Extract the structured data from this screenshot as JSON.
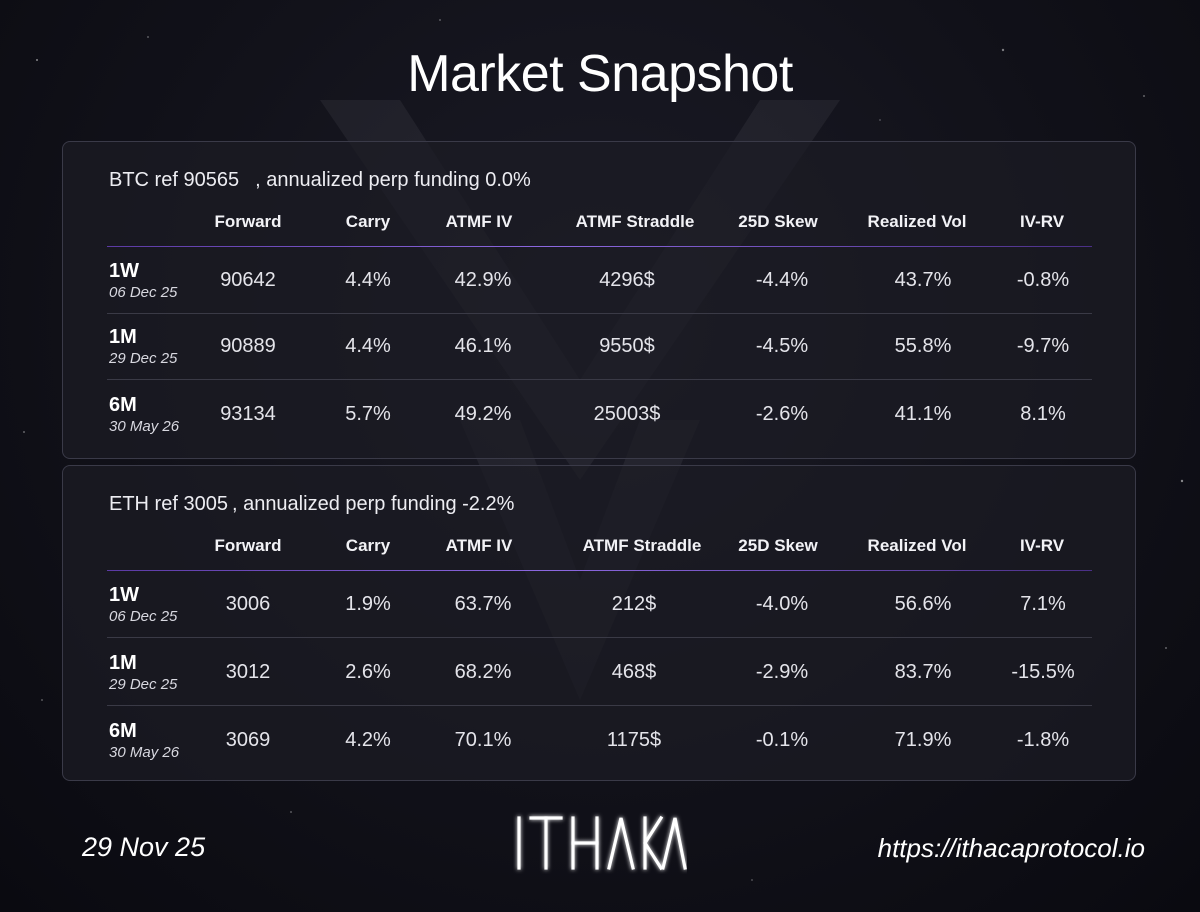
{
  "title": "Market Snapshot",
  "columns": [
    "Forward",
    "Carry",
    "ATMF IV",
    "ATMF Straddle",
    "25D Skew",
    "Realized Vol",
    "IV-RV"
  ],
  "btc": {
    "ref_label": "BTC ref 90565",
    "funding_label": ", annualized perp funding 0.0%",
    "rows": [
      {
        "tenor": "1W",
        "expiry": "06 Dec 25",
        "forward": "90642",
        "carry": "4.4%",
        "atmf_iv": "42.9%",
        "straddle": "4296$",
        "skew": "-4.4%",
        "realized": "43.7%",
        "ivrv": "-0.8%"
      },
      {
        "tenor": "1M",
        "expiry": "29 Dec 25",
        "forward": "90889",
        "carry": "4.4%",
        "atmf_iv": "46.1%",
        "straddle": "9550$",
        "skew": "-4.5%",
        "realized": "55.8%",
        "ivrv": "-9.7%"
      },
      {
        "tenor": "6M",
        "expiry": "30 May 26",
        "forward": "93134",
        "carry": "5.7%",
        "atmf_iv": "49.2%",
        "straddle": "25003$",
        "skew": "-2.6%",
        "realized": "41.1%",
        "ivrv": "8.1%"
      }
    ]
  },
  "eth": {
    "ref_label": "ETH ref 3005",
    "funding_label": ", annualized perp funding -2.2%",
    "rows": [
      {
        "tenor": "1W",
        "expiry": "06 Dec 25",
        "forward": "3006",
        "carry": "1.9%",
        "atmf_iv": "63.7%",
        "straddle": "212$",
        "skew": "-4.0%",
        "realized": "56.6%",
        "ivrv": "7.1%"
      },
      {
        "tenor": "1M",
        "expiry": "29 Dec 25",
        "forward": "3012",
        "carry": "2.6%",
        "atmf_iv": "68.2%",
        "straddle": "468$",
        "skew": "-2.9%",
        "realized": "83.7%",
        "ivrv": "-15.5%"
      },
      {
        "tenor": "6M",
        "expiry": "30 May 26",
        "forward": "3069",
        "carry": "4.2%",
        "atmf_iv": "70.1%",
        "straddle": "1175$",
        "skew": "-0.1%",
        "realized": "71.9%",
        "ivrv": "-1.8%"
      }
    ]
  },
  "footer": {
    "date": "29 Nov 25",
    "brand": "ITHACA",
    "url": "https://ithacaprotocol.io"
  },
  "colors": {
    "accent": "#7b5ad6",
    "background": "#111119",
    "panel_border": "#3a3a48"
  },
  "icons": {
    "logo": "ithaca-logo"
  }
}
